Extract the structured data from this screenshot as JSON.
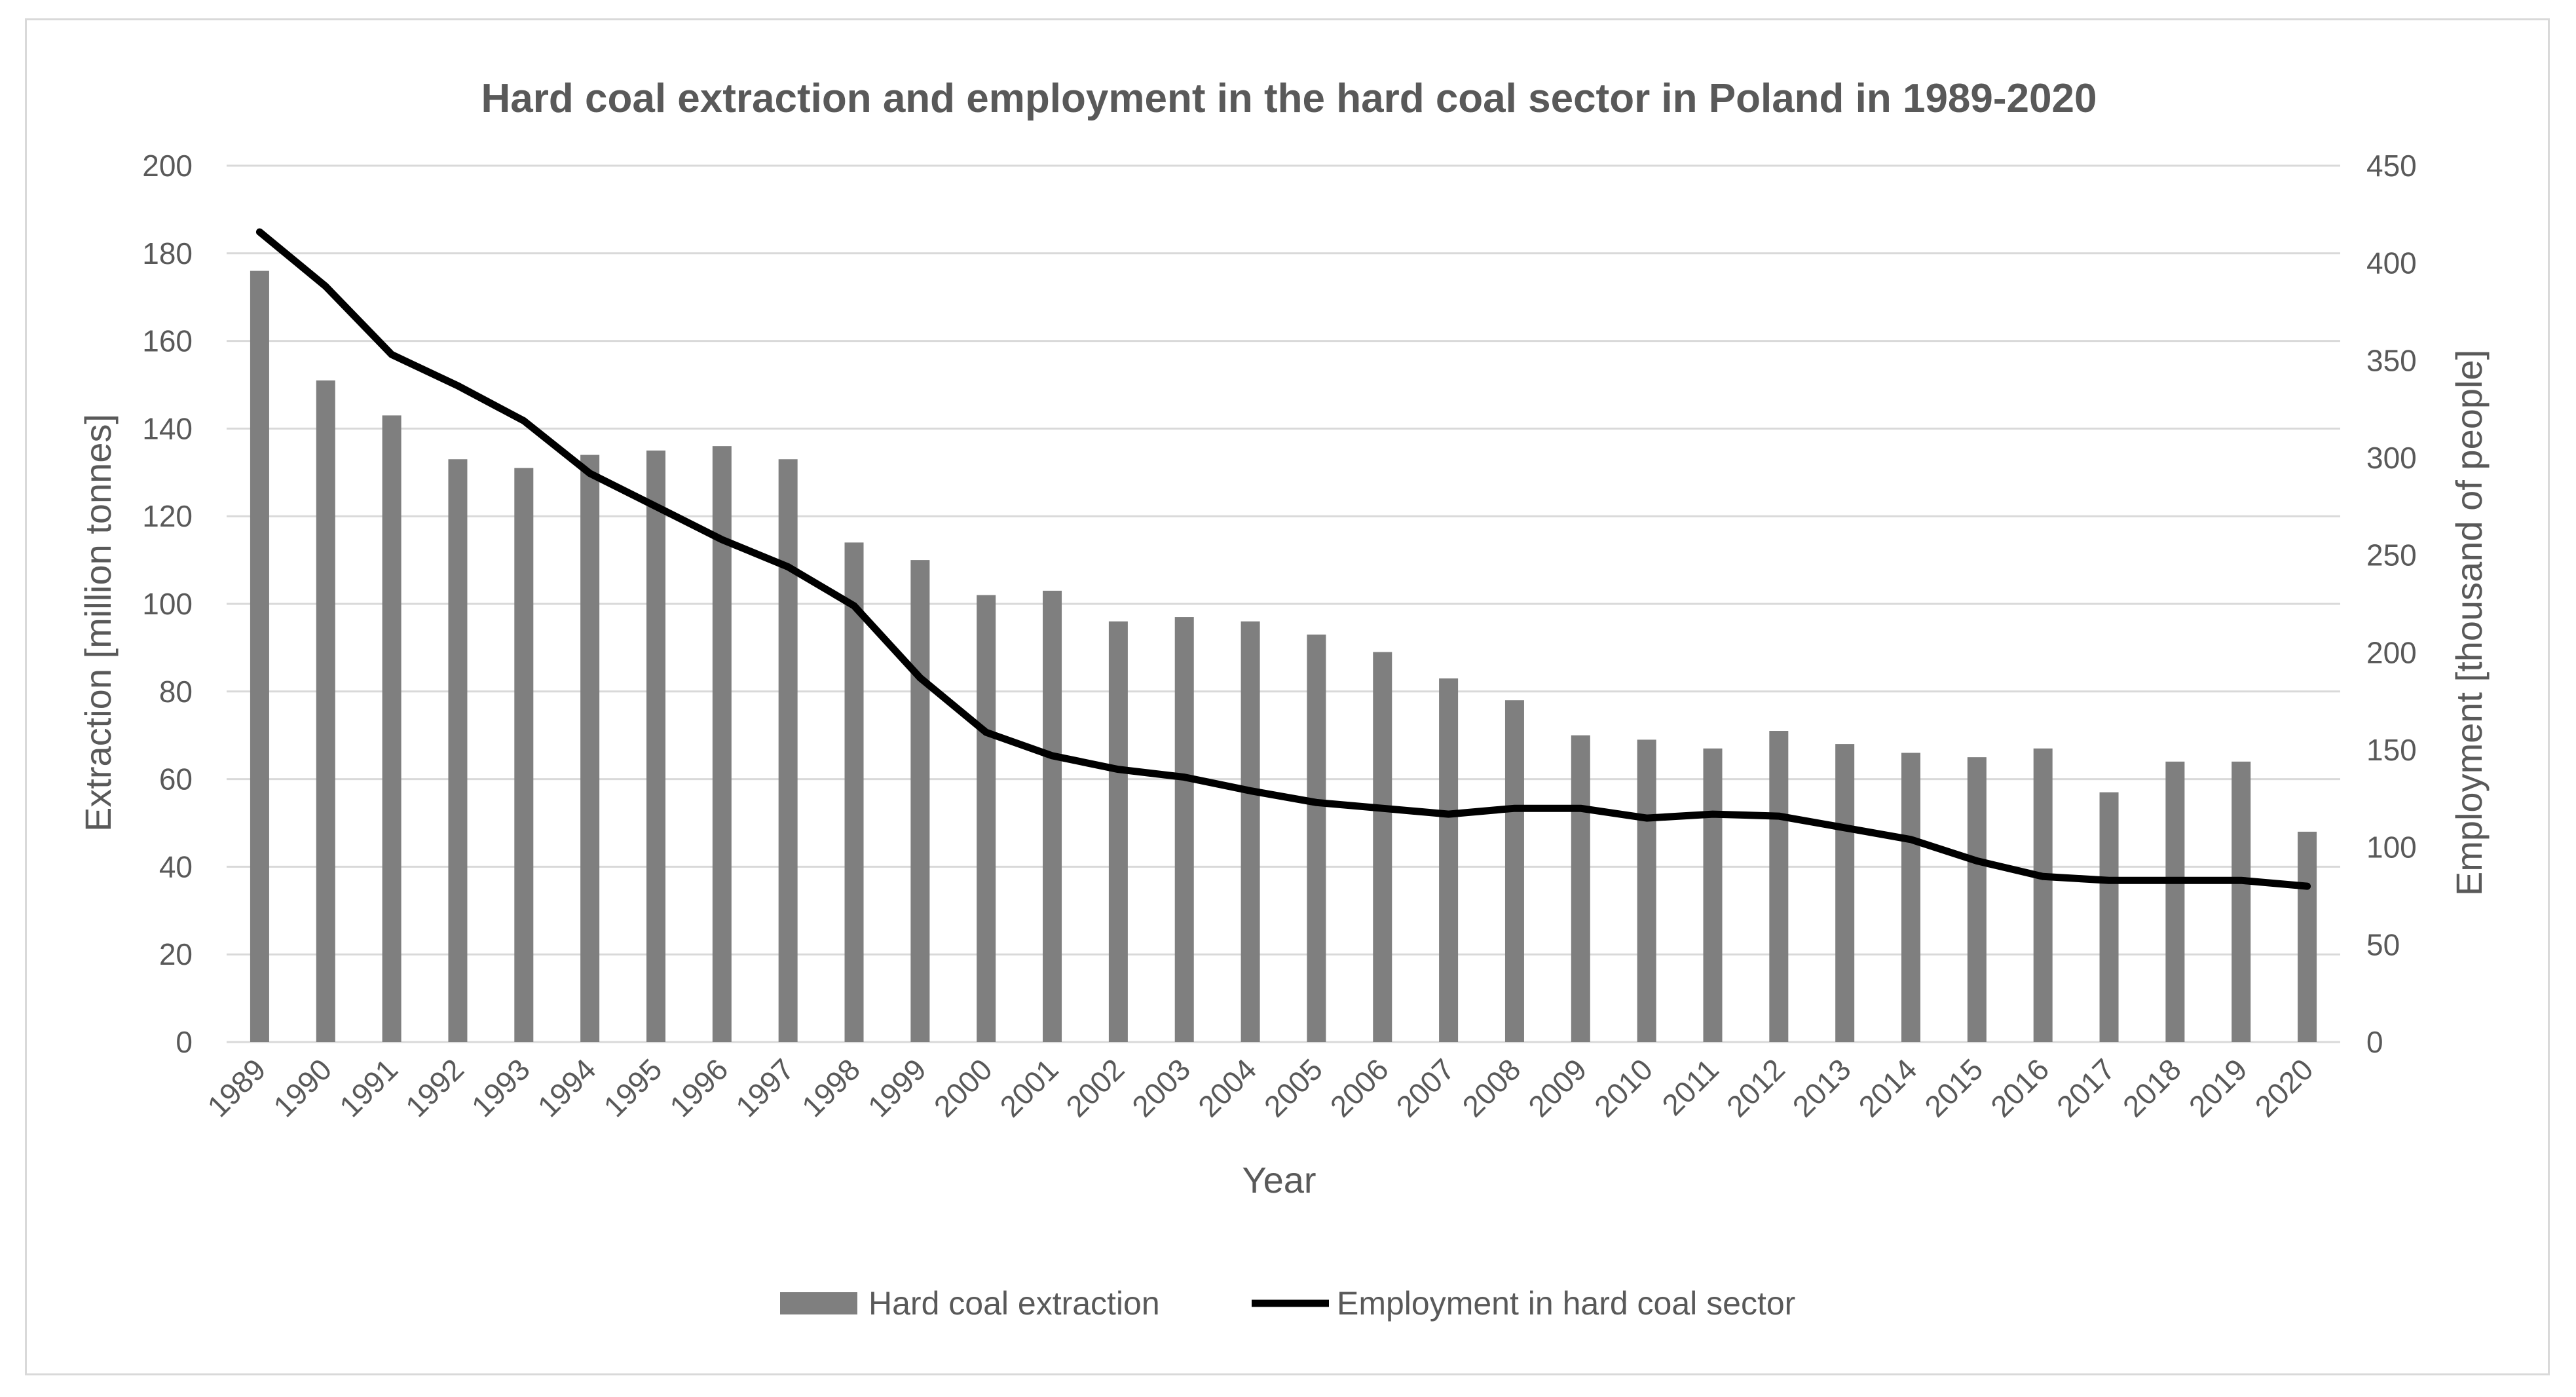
{
  "chart_data": {
    "type": "bar",
    "title": "Hard coal extraction and employment in the hard coal sector in Poland in 1989-2020",
    "xlabel": "Year",
    "ylabel": "Extraction [million tonnes]",
    "y2label": "Employment [thousand of people]",
    "ylim": [
      0,
      200
    ],
    "y2lim": [
      0,
      450
    ],
    "yticks": [
      "0",
      "20",
      "40",
      "60",
      "80",
      "100",
      "120",
      "140",
      "160",
      "180",
      "200"
    ],
    "y2ticks": [
      "0",
      "50",
      "100",
      "150",
      "200",
      "250",
      "300",
      "350",
      "400",
      "450"
    ],
    "grid": true,
    "legend_position": "bottom",
    "categories": [
      "1989",
      "1990",
      "1991",
      "1992",
      "1993",
      "1994",
      "1995",
      "1996",
      "1997",
      "1998",
      "1999",
      "2000",
      "2001",
      "2002",
      "2003",
      "2004",
      "2005",
      "2006",
      "2007",
      "2008",
      "2009",
      "2010",
      "2011",
      "2012",
      "2013",
      "2014",
      "2015",
      "2016",
      "2017",
      "2018",
      "2019",
      "2020"
    ],
    "series": [
      {
        "name": "Hard coal extraction",
        "type": "bar",
        "axis": "left",
        "color": "#7f7f7f",
        "values": [
          176,
          151,
          143,
          133,
          131,
          134,
          135,
          136,
          133,
          114,
          110,
          102,
          103,
          96,
          97,
          96,
          93,
          89,
          83,
          78,
          70,
          69,
          67,
          71,
          68,
          66,
          65,
          67,
          57,
          64,
          64,
          48
        ]
      },
      {
        "name": "Employment in hard coal sector",
        "type": "line",
        "axis": "right",
        "color": "#000000",
        "values": [
          416,
          388,
          353,
          337,
          319,
          292,
          275,
          258,
          244,
          224,
          187,
          159,
          147,
          140,
          136,
          129,
          123,
          120,
          117,
          120,
          120,
          115,
          117,
          116,
          110,
          104,
          93,
          85,
          83,
          83,
          83,
          80
        ]
      }
    ]
  }
}
